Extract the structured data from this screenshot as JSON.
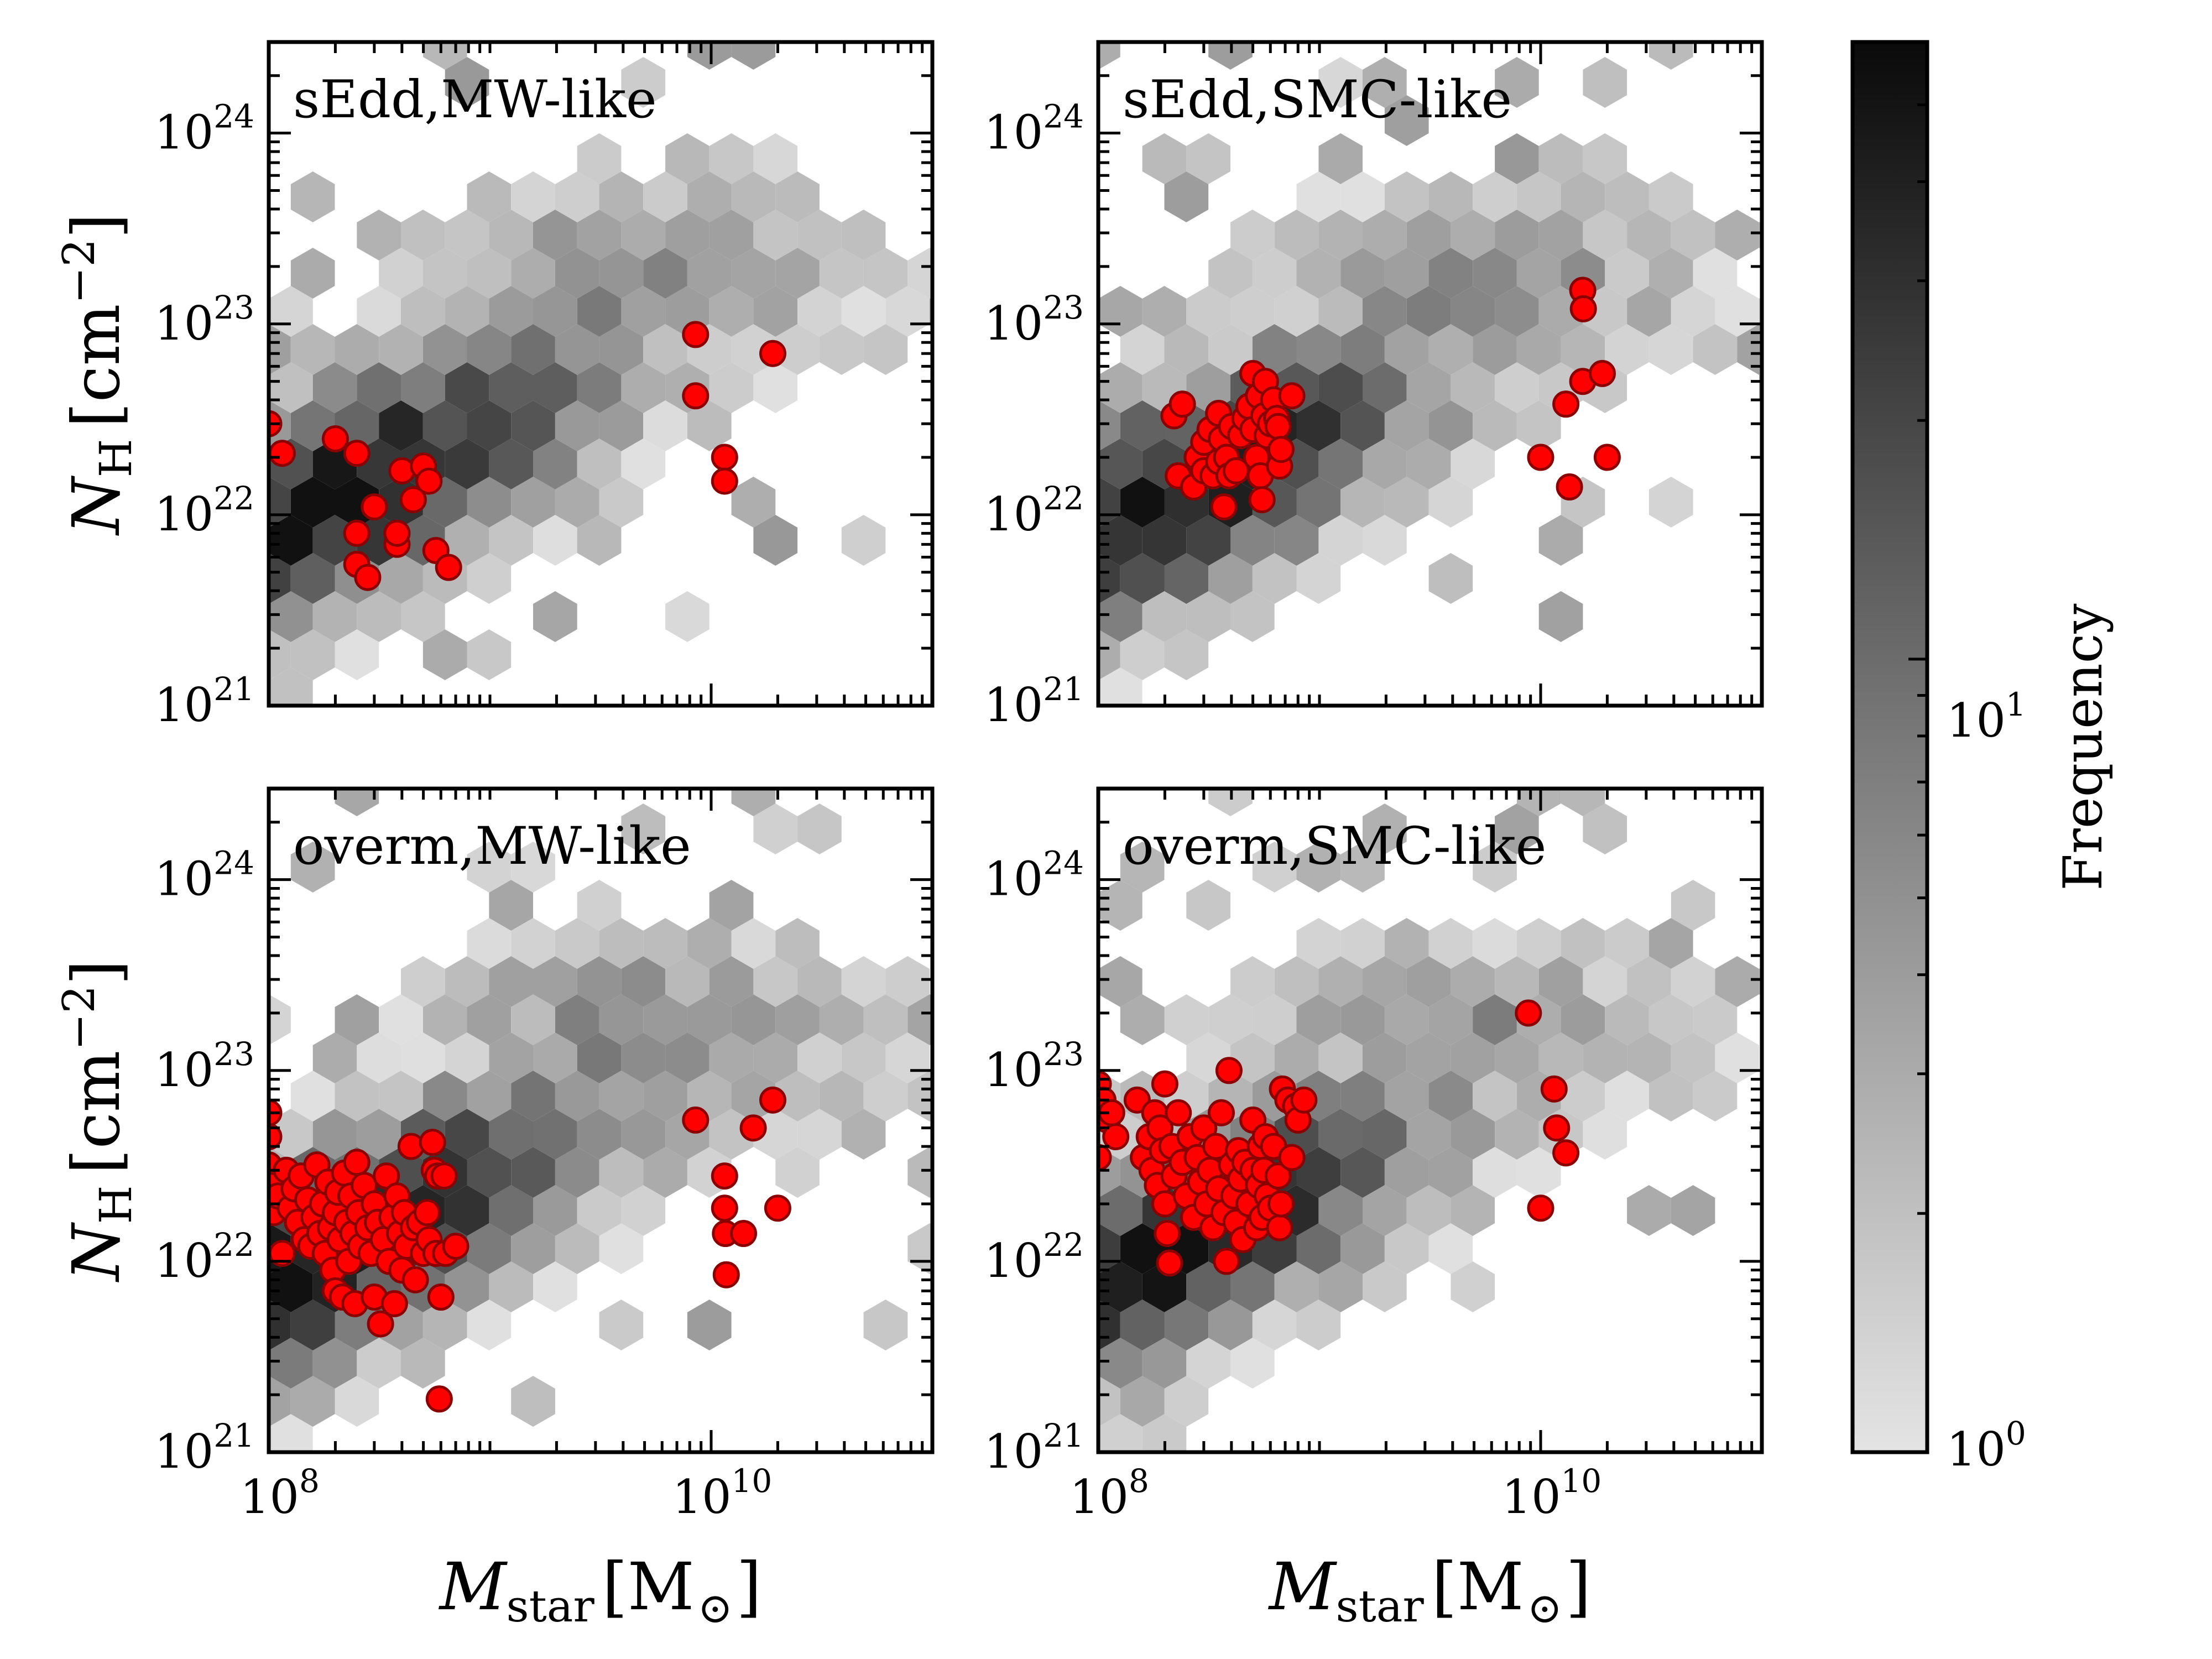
{
  "colors": {
    "hex_light": "#e4e4e4",
    "hex_dark": "#0a0a0a",
    "marker_fill": "#ff0000",
    "marker_edge": "#8b0000",
    "frame": "#000000"
  },
  "axes_text": {
    "x_label_main": "M",
    "x_label_sub": "star",
    "x_label_unit_open": "[M",
    "x_label_unit_sun": "⊙",
    "x_label_unit_close": "]",
    "y_label_main": "N",
    "y_label_sub": "H",
    "y_label_unit": "[cm",
    "y_label_unit_exp": "−2",
    "y_label_unit_close": "]",
    "x_ticks": [
      {
        "base": "10",
        "exp": "8"
      },
      {
        "base": "10",
        "exp": "10"
      }
    ],
    "y_ticks": [
      {
        "base": "10",
        "exp": "21"
      },
      {
        "base": "10",
        "exp": "22"
      },
      {
        "base": "10",
        "exp": "23"
      },
      {
        "base": "10",
        "exp": "24"
      }
    ]
  },
  "colorbar": {
    "label": "Frequency",
    "scale": "log",
    "ticks": [
      {
        "base": "10",
        "exp": "0"
      },
      {
        "base": "10",
        "exp": "1"
      }
    ],
    "range": [
      1,
      60
    ]
  },
  "chart_data": [
    {
      "type": "scatter",
      "panel": "sEdd,MW-like",
      "xscale": "log",
      "yscale": "log",
      "xlim": [
        100000000.0,
        100000000000.0
      ],
      "ylim": [
        1e+21,
        3e+24
      ],
      "background": "hexbin density of simulated sources (grey scale)",
      "points": [
        [
          100000000.0,
          3e+22
        ],
        [
          115000000.0,
          2.1e+22
        ],
        [
          200000000.0,
          2.5e+22
        ],
        [
          250000000.0,
          2.1e+22
        ],
        [
          300000000.0,
          1.1e+22
        ],
        [
          250000000.0,
          8e+21
        ],
        [
          250000000.0,
          5.5e+21
        ],
        [
          280000000.0,
          4.7e+21
        ],
        [
          380000000.0,
          7e+21
        ],
        [
          380000000.0,
          8e+21
        ],
        [
          400000000.0,
          1.7e+22
        ],
        [
          450000000.0,
          1.2e+22
        ],
        [
          500000000.0,
          1.8e+22
        ],
        [
          530000000.0,
          1.5e+22
        ],
        [
          570000000.0,
          6.5e+21
        ],
        [
          650000000.0,
          5.3e+21
        ],
        [
          8500000000.0,
          8.8e+22
        ],
        [
          8500000000.0,
          4.2e+22
        ],
        [
          11500000000.0,
          2e+22
        ],
        [
          11500000000.0,
          1.5e+22
        ],
        [
          19000000000.0,
          7e+22
        ]
      ]
    },
    {
      "type": "scatter",
      "panel": "sEdd,SMC-like",
      "xscale": "log",
      "yscale": "log",
      "xlim": [
        100000000.0,
        100000000000.0
      ],
      "ylim": [
        1e+21,
        3e+24
      ],
      "background": "hexbin density of simulated sources (grey scale)",
      "points": [
        [
          220000000.0,
          3.3e+22
        ],
        [
          240000000.0,
          3.8e+22
        ],
        [
          230000000.0,
          1.6e+22
        ],
        [
          270000000.0,
          1.4e+22
        ],
        [
          280000000.0,
          2e+22
        ],
        [
          300000000.0,
          1.7e+22
        ],
        [
          300000000.0,
          2.4e+22
        ],
        [
          320000000.0,
          2.8e+22
        ],
        [
          330000000.0,
          1.6e+22
        ],
        [
          350000000.0,
          3.4e+22
        ],
        [
          350000000.0,
          1.9e+22
        ],
        [
          360000000.0,
          2.5e+22
        ],
        [
          370000000.0,
          1.1e+22
        ],
        [
          380000000.0,
          2e+22
        ],
        [
          390000000.0,
          1.6e+22
        ],
        [
          400000000.0,
          2.9e+22
        ],
        [
          420000000.0,
          1.7e+22
        ],
        [
          440000000.0,
          2.6e+22
        ],
        [
          460000000.0,
          3.2e+22
        ],
        [
          480000000.0,
          3.7e+22
        ],
        [
          500000000.0,
          2.8e+22
        ],
        [
          500000000.0,
          5.5e+22
        ],
        [
          520000000.0,
          2e+22
        ],
        [
          530000000.0,
          4.2e+22
        ],
        [
          540000000.0,
          1.6e+22
        ],
        [
          550000000.0,
          1.2e+22
        ],
        [
          560000000.0,
          3.3e+22
        ],
        [
          570000000.0,
          5e+22
        ],
        [
          580000000.0,
          2.6e+22
        ],
        [
          600000000.0,
          3e+22
        ],
        [
          620000000.0,
          4e+22
        ],
        [
          640000000.0,
          3.2e+22
        ],
        [
          650000000.0,
          2.9e+22
        ],
        [
          660000000.0,
          1.8e+22
        ],
        [
          670000000.0,
          2.2e+22
        ],
        [
          750000000.0,
          4.2e+22
        ],
        [
          10000000000.0,
          2e+22
        ],
        [
          13000000000.0,
          3.8e+22
        ],
        [
          13500000000.0,
          1.4e+22
        ],
        [
          15500000000.0,
          5e+22
        ],
        [
          15500000000.0,
          1.5e+23
        ],
        [
          15600000000.0,
          1.2e+23
        ],
        [
          19000000000.0,
          5.5e+22
        ],
        [
          20000000000.0,
          2e+22
        ]
      ]
    },
    {
      "type": "scatter",
      "panel": "overm,MW-like",
      "xscale": "log",
      "yscale": "log",
      "xlim": [
        100000000.0,
        100000000000.0
      ],
      "ylim": [
        1e+21,
        3e+24
      ],
      "background": "hexbin density of simulated sources (grey scale)",
      "points": [
        [
          100000000.0,
          6e+22
        ],
        [
          100000000.0,
          4.5e+22
        ],
        [
          100000000.0,
          3.2e+22
        ],
        [
          102000000.0,
          2.5e+22
        ],
        [
          105000000.0,
          1.8e+22
        ],
        [
          110000000.0,
          2.2e+22
        ],
        [
          115000000.0,
          1.1e+22
        ],
        [
          120000000.0,
          3e+22
        ],
        [
          125000000.0,
          1.9e+22
        ],
        [
          130000000.0,
          2.4e+22
        ],
        [
          135000000.0,
          1.6e+22
        ],
        [
          140000000.0,
          2.8e+22
        ],
        [
          145000000.0,
          1.3e+22
        ],
        [
          150000000.0,
          2.1e+22
        ],
        [
          155000000.0,
          1.2e+22
        ],
        [
          160000000.0,
          1.7e+22
        ],
        [
          165000000.0,
          3.2e+22
        ],
        [
          170000000.0,
          1.4e+22
        ],
        [
          175000000.0,
          2e+22
        ],
        [
          180000000.0,
          1.1e+22
        ],
        [
          185000000.0,
          2.6e+22
        ],
        [
          190000000.0,
          1.5e+22
        ],
        [
          195000000.0,
          9e+21
        ],
        [
          200000000.0,
          1.8e+22
        ],
        [
          200000000.0,
          7e+21
        ],
        [
          205000000.0,
          2.3e+22
        ],
        [
          210000000.0,
          1.3e+22
        ],
        [
          215000000.0,
          6.5e+21
        ],
        [
          220000000.0,
          2.9e+22
        ],
        [
          225000000.0,
          1.6e+22
        ],
        [
          230000000.0,
          1e+22
        ],
        [
          235000000.0,
          2.2e+22
        ],
        [
          240000000.0,
          1.4e+22
        ],
        [
          245000000.0,
          6e+21
        ],
        [
          250000000.0,
          3.3e+22
        ],
        [
          255000000.0,
          1.8e+22
        ],
        [
          260000000.0,
          1.2e+22
        ],
        [
          270000000.0,
          2.5e+22
        ],
        [
          280000000.0,
          1.5e+22
        ],
        [
          290000000.0,
          1.1e+22
        ],
        [
          300000000.0,
          2e+22
        ],
        [
          300000000.0,
          6.5e+21
        ],
        [
          310000000.0,
          1.6e+22
        ],
        [
          320000000.0,
          4.7e+21
        ],
        [
          330000000.0,
          1.3e+22
        ],
        [
          340000000.0,
          2.8e+22
        ],
        [
          350000000.0,
          1e+22
        ],
        [
          360000000.0,
          1.7e+22
        ],
        [
          370000000.0,
          6e+21
        ],
        [
          380000000.0,
          2.2e+22
        ],
        [
          390000000.0,
          1.4e+22
        ],
        [
          400000000.0,
          9e+21
        ],
        [
          410000000.0,
          1.8e+22
        ],
        [
          420000000.0,
          1.2e+22
        ],
        [
          440000000.0,
          4e+22
        ],
        [
          450000000.0,
          1.5e+22
        ],
        [
          460000000.0,
          8e+21
        ],
        [
          480000000.0,
          1.6e+22
        ],
        [
          500000000.0,
          1.1e+22
        ],
        [
          520000000.0,
          1.8e+22
        ],
        [
          530000000.0,
          1.3e+22
        ],
        [
          550000000.0,
          4.2e+22
        ],
        [
          560000000.0,
          3e+22
        ],
        [
          570000000.0,
          1.1e+22
        ],
        [
          580000000.0,
          2.8e+22
        ],
        [
          590000000.0,
          1.9e+21
        ],
        [
          600000000.0,
          6.5e+21
        ],
        [
          620000000.0,
          2.8e+22
        ],
        [
          630000000.0,
          1.1e+22
        ],
        [
          700000000.0,
          1.2e+22
        ],
        [
          8500000000.0,
          5.5e+22
        ],
        [
          11500000000.0,
          2.8e+22
        ],
        [
          11500000000.0,
          1.9e+22
        ],
        [
          11600000000.0,
          1.4e+22
        ],
        [
          11700000000.0,
          8.5e+21
        ],
        [
          14000000000.0,
          1.4e+22
        ],
        [
          15500000000.0,
          5e+22
        ],
        [
          19000000000.0,
          7e+22
        ],
        [
          20000000000.0,
          1.9e+22
        ]
      ]
    },
    {
      "type": "scatter",
      "panel": "overm,SMC-like",
      "xscale": "log",
      "yscale": "log",
      "xlim": [
        100000000.0,
        100000000000.0
      ],
      "ylim": [
        1e+21,
        3e+24
      ],
      "background": "hexbin density of simulated sources (grey scale)",
      "points": [
        [
          100000000.0,
          8.5e+22
        ],
        [
          100000000.0,
          6.5e+22
        ],
        [
          100000000.0,
          3.5e+22
        ],
        [
          105000000.0,
          7e+22
        ],
        [
          110000000.0,
          5.5e+22
        ],
        [
          115000000.0,
          6e+22
        ],
        [
          120000000.0,
          4.5e+22
        ],
        [
          150000000.0,
          7e+22
        ],
        [
          160000000.0,
          3.5e+22
        ],
        [
          170000000.0,
          4.5e+22
        ],
        [
          175000000.0,
          3e+22
        ],
        [
          180000000.0,
          6e+22
        ],
        [
          185000000.0,
          2.5e+22
        ],
        [
          190000000.0,
          5e+22
        ],
        [
          195000000.0,
          3.8e+22
        ],
        [
          200000000.0,
          2e+22
        ],
        [
          200000000.0,
          8.5e+22
        ],
        [
          205000000.0,
          1.4e+22
        ],
        [
          210000000.0,
          9.8e+21
        ],
        [
          215000000.0,
          4e+22
        ],
        [
          220000000.0,
          2.8e+22
        ],
        [
          230000000.0,
          6e+22
        ],
        [
          240000000.0,
          3.3e+22
        ],
        [
          250000000.0,
          2.2e+22
        ],
        [
          260000000.0,
          4.5e+22
        ],
        [
          270000000.0,
          1.7e+22
        ],
        [
          280000000.0,
          3.5e+22
        ],
        [
          290000000.0,
          2.6e+22
        ],
        [
          300000000.0,
          5e+22
        ],
        [
          310000000.0,
          2e+22
        ],
        [
          320000000.0,
          3e+22
        ],
        [
          330000000.0,
          1.5e+22
        ],
        [
          340000000.0,
          4e+22
        ],
        [
          350000000.0,
          2.4e+22
        ],
        [
          360000000.0,
          6e+22
        ],
        [
          370000000.0,
          1.8e+22
        ],
        [
          380000000.0,
          1e+22
        ],
        [
          390000000.0,
          1e+23
        ],
        [
          400000000.0,
          3.2e+22
        ],
        [
          410000000.0,
          2.2e+22
        ],
        [
          420000000.0,
          1.6e+22
        ],
        [
          430000000.0,
          3.8e+22
        ],
        [
          440000000.0,
          2.7e+22
        ],
        [
          450000000.0,
          1.3e+22
        ],
        [
          460000000.0,
          3.3e+22
        ],
        [
          480000000.0,
          2e+22
        ],
        [
          500000000.0,
          3e+22
        ],
        [
          500000000.0,
          5.5e+22
        ],
        [
          520000000.0,
          1.5e+22
        ],
        [
          530000000.0,
          2.5e+22
        ],
        [
          540000000.0,
          4e+22
        ],
        [
          550000000.0,
          1.7e+22
        ],
        [
          560000000.0,
          3e+22
        ],
        [
          570000000.0,
          4.5e+22
        ],
        [
          580000000.0,
          2.2e+22
        ],
        [
          600000000.0,
          1.9e+22
        ],
        [
          620000000.0,
          4e+22
        ],
        [
          650000000.0,
          2.8e+22
        ],
        [
          660000000.0,
          1.5e+22
        ],
        [
          670000000.0,
          2e+22
        ],
        [
          680000000.0,
          8e+22
        ],
        [
          720000000.0,
          7e+22
        ],
        [
          750000000.0,
          3.5e+22
        ],
        [
          780000000.0,
          6.5e+22
        ],
        [
          800000000.0,
          5.5e+22
        ],
        [
          850000000.0,
          7e+22
        ],
        [
          8800000000.0,
          2e+23
        ],
        [
          10000000000.0,
          1.9e+22
        ],
        [
          11500000000.0,
          8e+22
        ],
        [
          11800000000.0,
          5e+22
        ],
        [
          13000000000.0,
          3.7e+22
        ]
      ]
    }
  ],
  "panels": [
    {
      "id": "p1",
      "label": "sEdd,MW-like",
      "show_xticks": false,
      "seed": 11
    },
    {
      "id": "p2",
      "label": "sEdd,SMC-like",
      "show_xticks": false,
      "seed": 23
    },
    {
      "id": "p3",
      "label": "overm,MW-like",
      "show_xticks": true,
      "seed": 37
    },
    {
      "id": "p4",
      "label": "overm,SMC-like",
      "show_xticks": true,
      "seed": 53
    }
  ]
}
